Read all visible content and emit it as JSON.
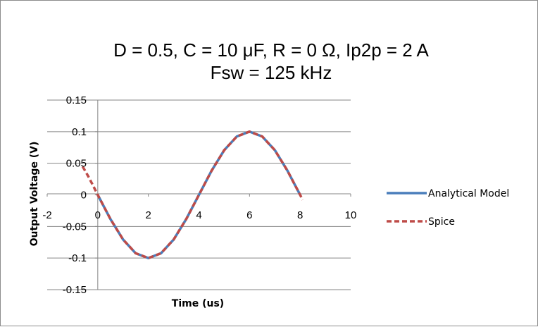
{
  "chart_data": {
    "type": "line",
    "title": "D = 0.5, C = 10 μF, R = 0 Ω, Ip2p = 2 A",
    "subtitle": "Fsw = 125 kHz",
    "xlabel": "Time (us)",
    "ylabel": "Output Voltage (V)",
    "xlim": [
      -2,
      10
    ],
    "ylim": [
      -0.15,
      0.15
    ],
    "x_ticks": [
      -2,
      0,
      2,
      4,
      6,
      8,
      10
    ],
    "x_tick_labels": [
      "-2",
      "0",
      "2",
      "4",
      "6",
      "8",
      "10"
    ],
    "y_ticks": [
      0.15,
      0.1,
      0.05,
      0,
      -0.05,
      -0.1,
      -0.15
    ],
    "y_tick_labels": [
      "0.15",
      "0.1",
      "0.05",
      "0",
      "-0.05",
      "-0.1",
      "-0.15"
    ],
    "grid": "horizontal",
    "legend_position": "right",
    "series": [
      {
        "name": "Analytical Model",
        "color": "#4a7ebb",
        "style": "solid",
        "x": [
          0,
          0.5,
          1,
          1.5,
          2,
          2.5,
          3,
          3.5,
          4,
          4.5,
          5,
          5.5,
          6,
          6.5,
          7,
          7.5,
          8
        ],
        "y": [
          0,
          -0.0383,
          -0.0707,
          -0.0924,
          -0.1,
          -0.0924,
          -0.0707,
          -0.0383,
          0,
          0.0383,
          0.0707,
          0.0924,
          0.1,
          0.0924,
          0.0707,
          0.0383,
          0
        ]
      },
      {
        "name": "Spice",
        "color": "#be4b48",
        "style": "dashed",
        "x": [
          -0.6,
          -0.4,
          -0.2,
          0,
          0.5,
          1,
          1.5,
          2,
          2.5,
          3,
          3.5,
          4,
          4.5,
          5,
          5.5,
          6,
          6.5,
          7,
          7.5,
          8,
          8.1
        ],
        "y": [
          0.045,
          0.031,
          0.016,
          0,
          -0.0383,
          -0.0707,
          -0.0924,
          -0.1,
          -0.0924,
          -0.0707,
          -0.0383,
          0,
          0.0383,
          0.0707,
          0.0924,
          0.1,
          0.0924,
          0.0707,
          0.0383,
          0,
          -0.008
        ]
      }
    ]
  }
}
